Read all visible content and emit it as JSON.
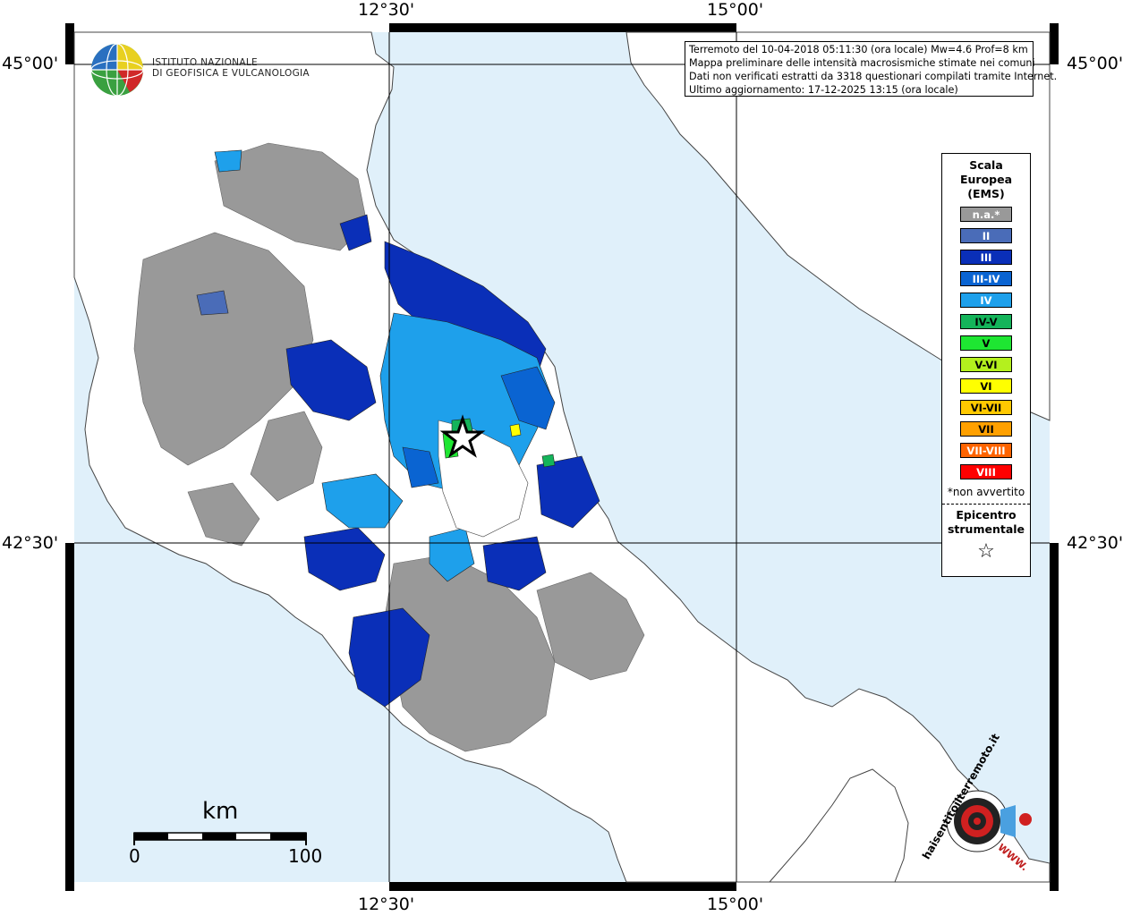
{
  "coords": {
    "lon_left": "12°30'",
    "lon_right": "15°00'",
    "lat_top": "45°00'",
    "lat_bottom": "42°30'"
  },
  "logo": {
    "line1": "ISTITUTO NAZIONALE",
    "line2": "DI GEOFISICA E VULCANOLOGIA"
  },
  "info": {
    "line1": "Terremoto del 10-04-2018 05:11:30 (ora locale) Mw=4.6 Prof=8 km",
    "line2": "Mappa preliminare delle intensità macrosismiche stimate nei comuni",
    "line3": "Dati non verificati estratti da 3318 questionari compilati tramite Internet.",
    "line4": "Ultimo aggiornamento: 17-12-2025 13:15 (ora locale)"
  },
  "legend": {
    "title1": "Scala",
    "title2": "Europea",
    "title3": "(EMS)",
    "items": [
      {
        "label": "n.a.*",
        "color": "#999999"
      },
      {
        "label": "II",
        "color": "#4a6cb8"
      },
      {
        "label": "III",
        "color": "#0a2fb8"
      },
      {
        "label": "III-IV",
        "color": "#0a64d2"
      },
      {
        "label": "IV",
        "color": "#1ea0eb"
      },
      {
        "label": "IV-V",
        "color": "#14b45a"
      },
      {
        "label": "V",
        "color": "#1ee632"
      },
      {
        "label": "V-VI",
        "color": "#b4f01e"
      },
      {
        "label": "VI",
        "color": "#ffff00"
      },
      {
        "label": "VI-VII",
        "color": "#ffc800"
      },
      {
        "label": "VII",
        "color": "#ffa000"
      },
      {
        "label": "VII-VIII",
        "color": "#ff6400"
      },
      {
        "label": "VIII",
        "color": "#ff0000"
      }
    ],
    "note": "*non avvertito",
    "epi1": "Epicentro",
    "epi2": "strumentale",
    "star": "☆"
  },
  "scale": {
    "unit": "km",
    "min": "0",
    "max": "100"
  },
  "hsit": {
    "text": "haisentitoilterremoto.it",
    "www": "WWW."
  },
  "colors": {
    "sea": "#e0f0fa",
    "land": "#ffffff",
    "na": "#999999"
  }
}
